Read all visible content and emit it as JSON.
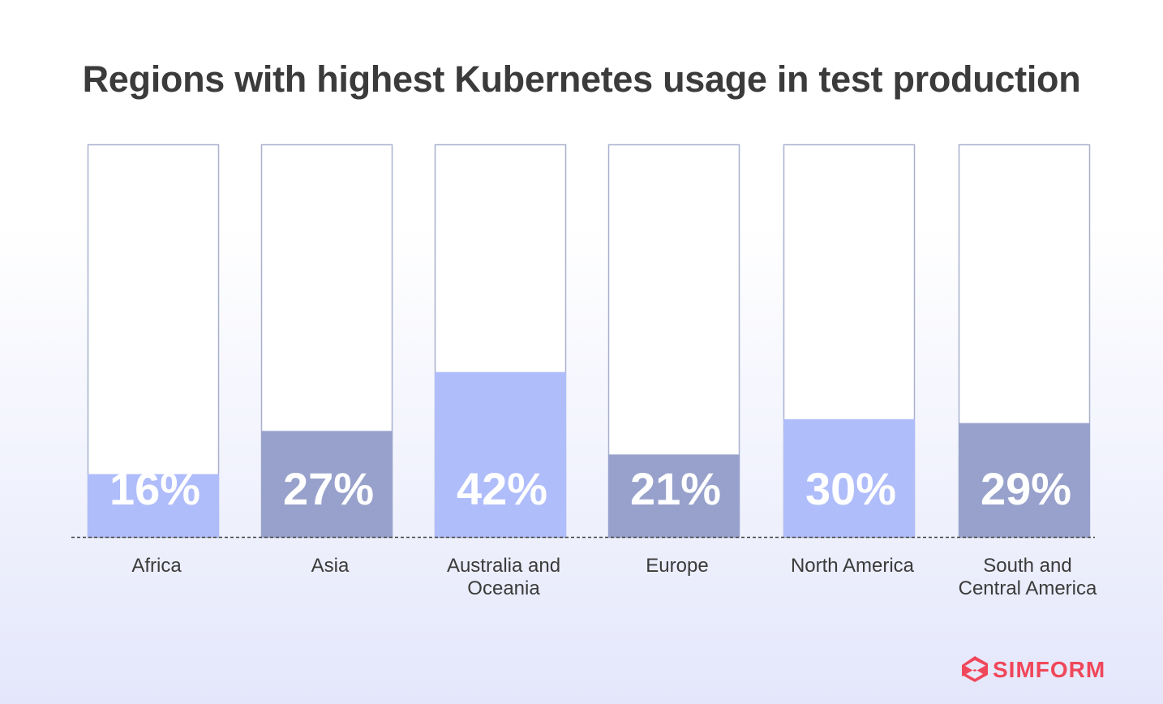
{
  "chart_data": {
    "type": "bar",
    "title": "Regions with highest Kubernetes usage in test production",
    "categories": [
      [
        "Africa"
      ],
      [
        "Asia"
      ],
      [
        "Australia and",
        "Oceania"
      ],
      [
        "Europe"
      ],
      [
        "North America"
      ],
      [
        "South and",
        "Central America"
      ]
    ],
    "values": [
      16,
      27,
      42,
      21,
      30,
      29
    ],
    "value_labels": [
      "16%",
      "27%",
      "42%",
      "21%",
      "30%",
      "29%"
    ],
    "value_suffix": "%",
    "ylim": [
      0,
      100
    ],
    "grid": false,
    "legend": "none",
    "bar_colors": [
      "#b0bdfb",
      "#97a1cb",
      "#b0bdfb",
      "#97a1cb",
      "#b0bdfb",
      "#97a1cb"
    ],
    "track_border_color": "#a8b0cd",
    "value_label_color": "#ffffff",
    "category_label_color": "#3b3b3b"
  },
  "brand": {
    "name": "SIMFORM",
    "color": "#f0475a",
    "icon": "simform-logo-icon"
  }
}
